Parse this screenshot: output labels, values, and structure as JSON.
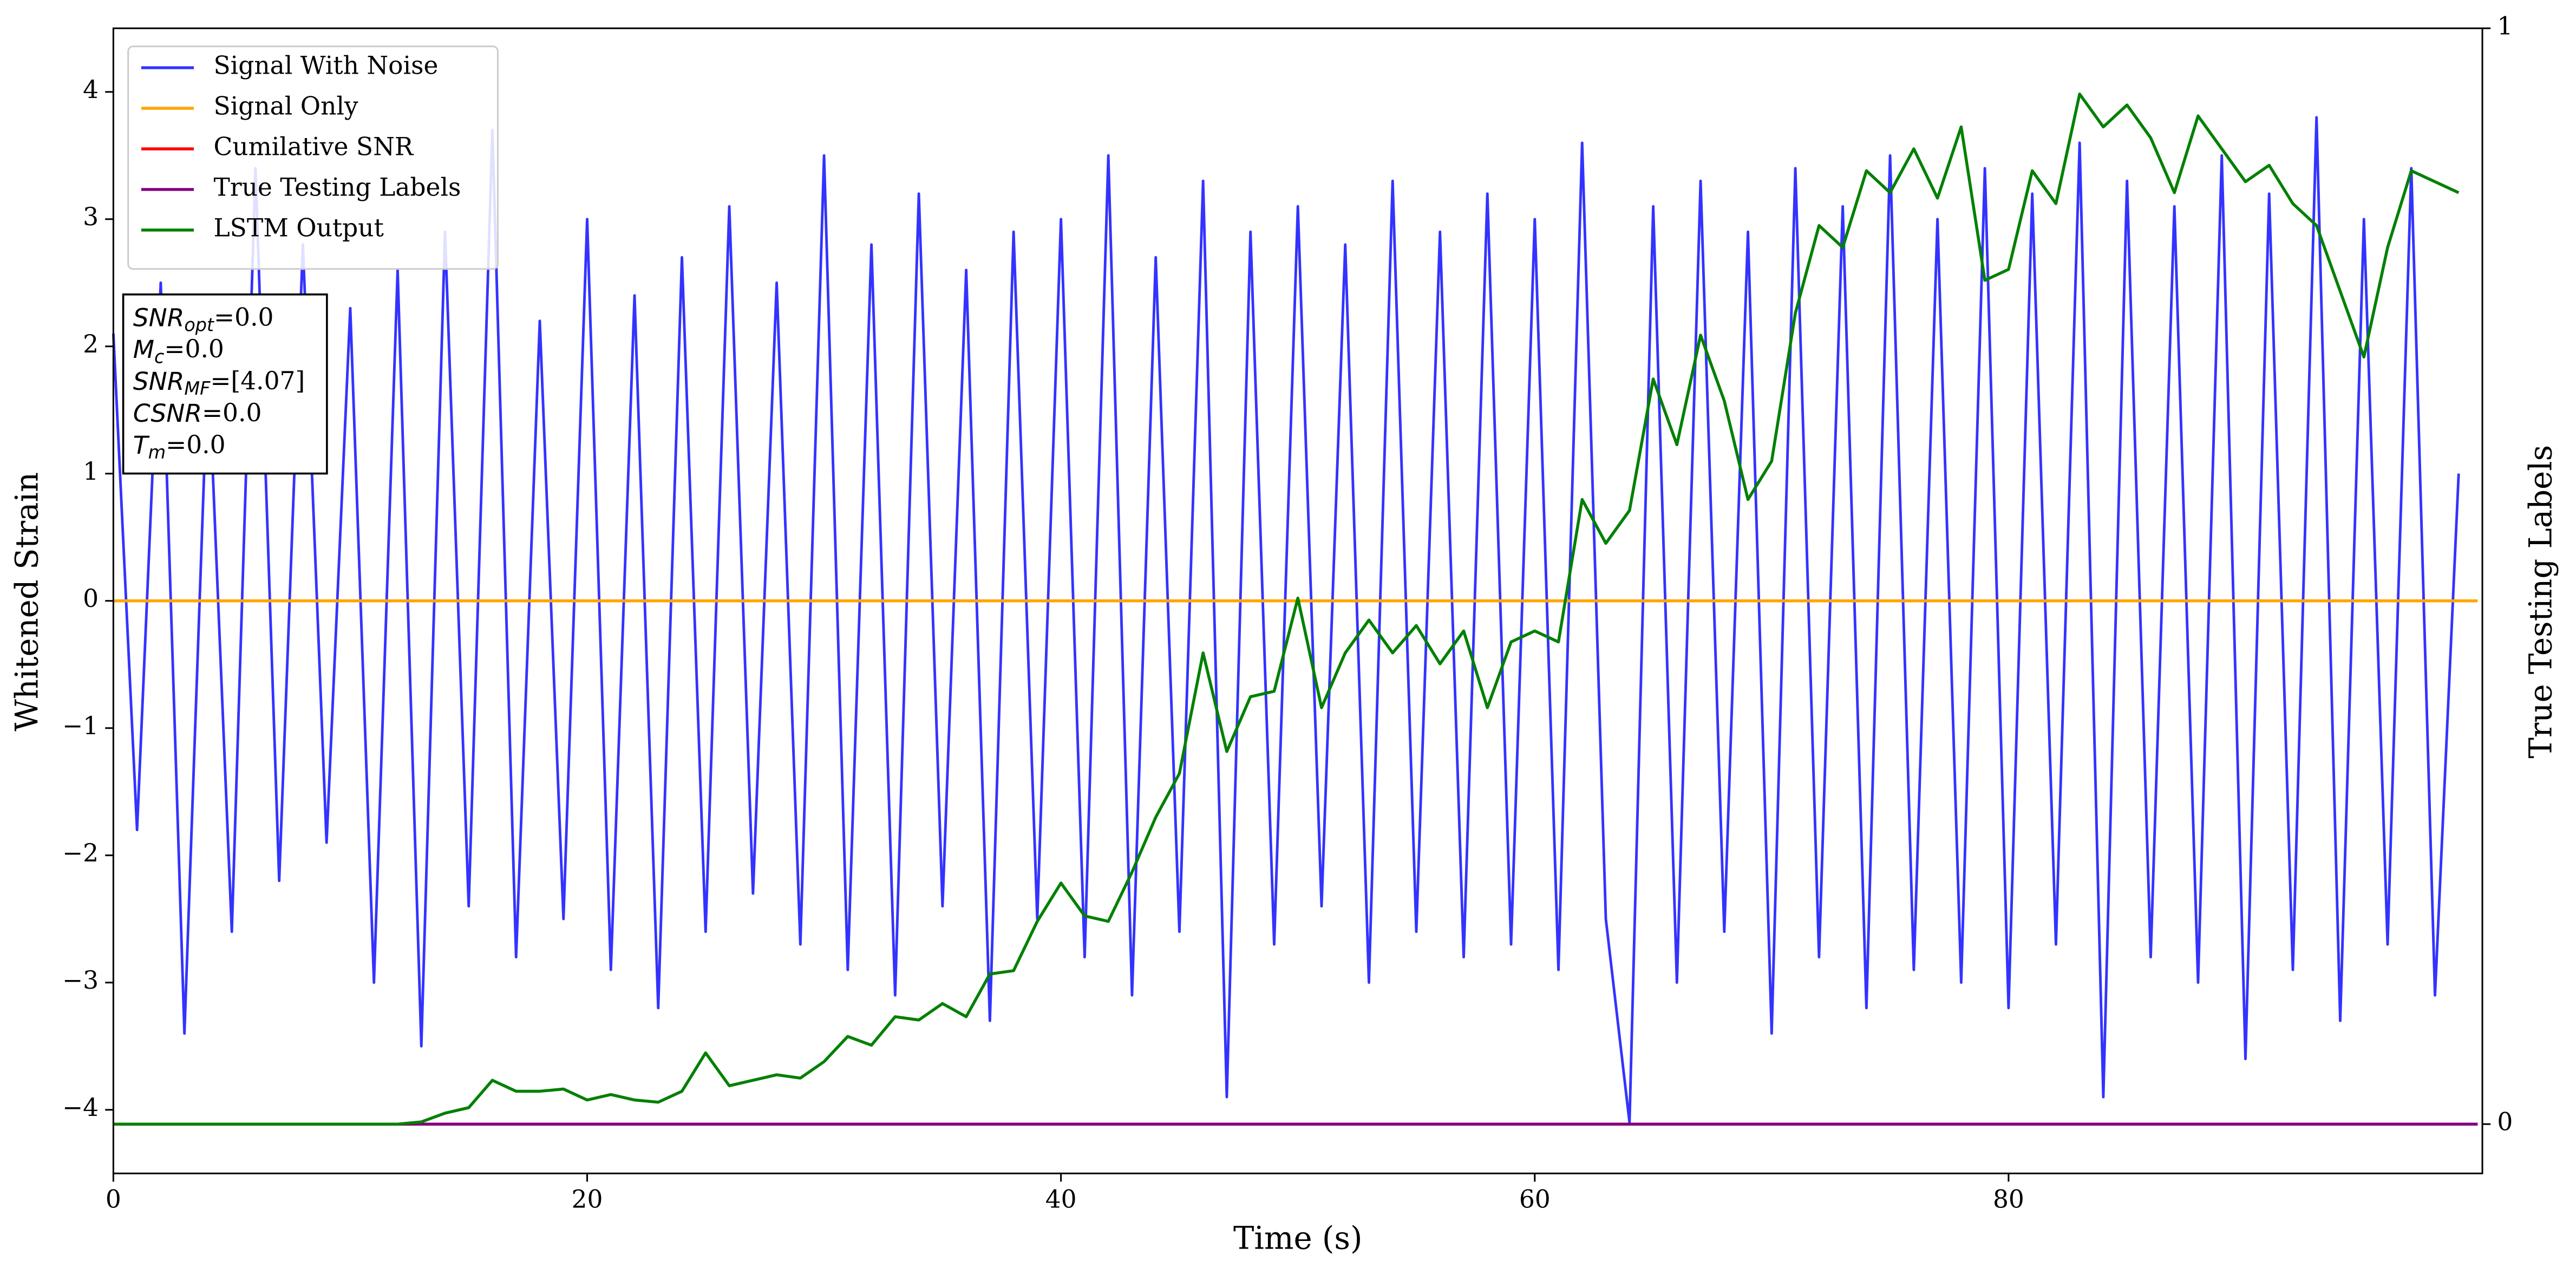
{
  "chart_data": {
    "type": "line",
    "xlabel": "Time (s)",
    "ylabel": "Whitened Strain",
    "y2label": "True Testing Labels",
    "x": [
      0,
      1,
      2,
      3,
      4,
      5,
      6,
      7,
      8,
      9,
      10,
      11,
      12,
      13,
      14,
      15,
      16,
      17,
      18,
      19,
      20,
      21,
      22,
      23,
      24,
      25,
      26,
      27,
      28,
      29,
      30,
      31,
      32,
      33,
      34,
      35,
      36,
      37,
      38,
      39,
      40,
      41,
      42,
      43,
      44,
      45,
      46,
      47,
      48,
      49,
      50,
      51,
      52,
      53,
      54,
      55,
      56,
      57,
      58,
      59,
      60,
      61,
      62,
      63,
      64,
      65,
      66,
      67,
      68,
      69,
      70,
      71,
      72,
      73,
      74,
      75,
      76,
      77,
      78,
      79,
      80,
      81,
      82,
      83,
      84,
      85,
      86,
      87,
      88,
      89,
      90,
      91,
      92,
      93,
      94,
      95,
      96,
      97,
      98,
      99
    ],
    "series": [
      {
        "name": "Signal With Noise",
        "color": "#3333ff",
        "axis": "y",
        "values": [
          2.1,
          -1.8,
          2.5,
          -3.4,
          1.9,
          -2.6,
          3.4,
          -2.2,
          2.8,
          -1.9,
          2.3,
          -3.0,
          2.6,
          -3.5,
          2.9,
          -2.4,
          3.7,
          -2.8,
          2.2,
          -2.5,
          3.0,
          -2.9,
          2.4,
          -3.2,
          2.7,
          -2.6,
          3.1,
          -2.3,
          2.5,
          -2.7,
          3.5,
          -2.9,
          2.8,
          -3.1,
          3.2,
          -2.4,
          2.6,
          -3.3,
          2.9,
          -2.5,
          3.0,
          -2.8,
          3.5,
          -3.1,
          2.7,
          -2.6,
          3.3,
          -3.9,
          2.9,
          -2.7,
          3.1,
          -2.4,
          2.8,
          -3.0,
          3.3,
          -2.6,
          2.9,
          -2.8,
          3.2,
          -2.7,
          3.0,
          -2.9,
          3.6,
          -2.5,
          -4.1,
          3.1,
          -3.0,
          3.3,
          -2.6,
          2.9,
          -3.4,
          3.4,
          -2.8,
          3.1,
          -3.2,
          3.5,
          -2.9,
          3.0,
          -3.0,
          3.4,
          -3.2,
          3.2,
          -2.7,
          3.6,
          -3.9,
          3.3,
          -2.8,
          3.1,
          -3.0,
          3.5,
          -3.6,
          3.2,
          -2.9,
          3.8,
          -3.3,
          3.0,
          -2.7,
          3.4,
          -3.1,
          1.0
        ]
      },
      {
        "name": "Signal Only",
        "color": "#ffa500",
        "axis": "y",
        "x": [
          0,
          99.8
        ],
        "values": [
          0,
          0
        ]
      },
      {
        "name": "Cumilative SNR",
        "color": "#ff0000",
        "axis": "y2",
        "x": [
          0,
          99.8
        ],
        "values": [
          0,
          0
        ]
      },
      {
        "name": "True Testing Labels",
        "color": "#800080",
        "axis": "y2",
        "x": [
          0,
          99.8
        ],
        "values": [
          0,
          0
        ]
      },
      {
        "name": "LSTM Output",
        "color": "#008000",
        "axis": "y2",
        "values": [
          0,
          0,
          0,
          0,
          0,
          0,
          0,
          0,
          0,
          0,
          0,
          0,
          0,
          0.002,
          0.01,
          0.015,
          0.04,
          0.03,
          0.03,
          0.032,
          0.022,
          0.027,
          0.022,
          0.02,
          0.03,
          0.065,
          0.035,
          0.04,
          0.045,
          0.042,
          0.057,
          0.08,
          0.072,
          0.098,
          0.095,
          0.11,
          0.098,
          0.137,
          0.14,
          0.185,
          0.22,
          0.19,
          0.185,
          0.23,
          0.28,
          0.32,
          0.43,
          0.34,
          0.39,
          0.395,
          0.48,
          0.38,
          0.43,
          0.46,
          0.43,
          0.455,
          0.42,
          0.45,
          0.38,
          0.44,
          0.45,
          0.44,
          0.57,
          0.53,
          0.56,
          0.68,
          0.62,
          0.72,
          0.66,
          0.57,
          0.605,
          0.74,
          0.82,
          0.8,
          0.87,
          0.85,
          0.89,
          0.845,
          0.91,
          0.77,
          0.78,
          0.87,
          0.84,
          0.94,
          0.91,
          0.93,
          0.9,
          0.85,
          0.92,
          0.89,
          0.86,
          0.875,
          0.84,
          0.82,
          0.76,
          0.7,
          0.8,
          0.87,
          0.86,
          0.85
        ]
      }
    ],
    "xlim": [
      0,
      100
    ],
    "xticks": [
      0,
      20,
      40,
      60,
      80
    ],
    "ylim": [
      -4.5,
      4.5
    ],
    "yticks": [
      {
        "value": -4,
        "label": "−4"
      },
      {
        "value": -3,
        "label": "−3"
      },
      {
        "value": -2,
        "label": "−2"
      },
      {
        "value": -1,
        "label": "−1"
      },
      0,
      1,
      2,
      3,
      4
    ],
    "y2lim": [
      -0.045,
      1.0
    ],
    "y2ticks": [
      0,
      1
    ],
    "legend": "upper left",
    "annotations": [
      {
        "symbol": "SNR",
        "sub": "opt",
        "text": "=0.0"
      },
      {
        "symbol": "M",
        "sub": "c",
        "text": "=0.0"
      },
      {
        "symbol": "SNR",
        "sub": "MF",
        "text": "=[4.07]"
      },
      {
        "symbol": "CSNR",
        "sub": null,
        "text": "=0.0"
      },
      {
        "symbol": "T",
        "sub": "m",
        "text": "=0.0"
      }
    ]
  }
}
